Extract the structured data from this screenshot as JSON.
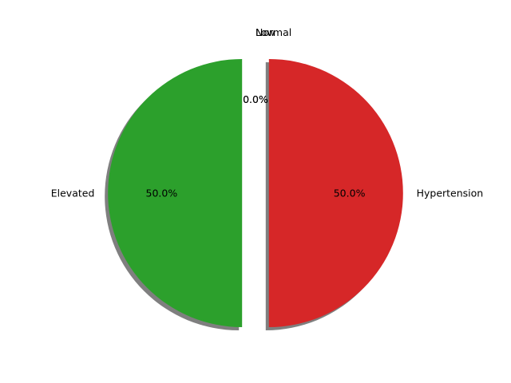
{
  "chart_data": {
    "type": "pie",
    "title": "",
    "start_angle_deg": 90,
    "direction": "counterclockwise",
    "explode": 0.1,
    "shadow": true,
    "categories": [
      "Low",
      "Normal",
      "Elevated",
      "Hypertension"
    ],
    "values": [
      0,
      0,
      50,
      50
    ],
    "percent_labels": [
      "0.0%",
      "0.0%",
      "50.0%",
      "50.0%"
    ],
    "colors": [
      "#1f77b4",
      "#ff7f0e",
      "#2ca02c",
      "#d62728"
    ]
  }
}
